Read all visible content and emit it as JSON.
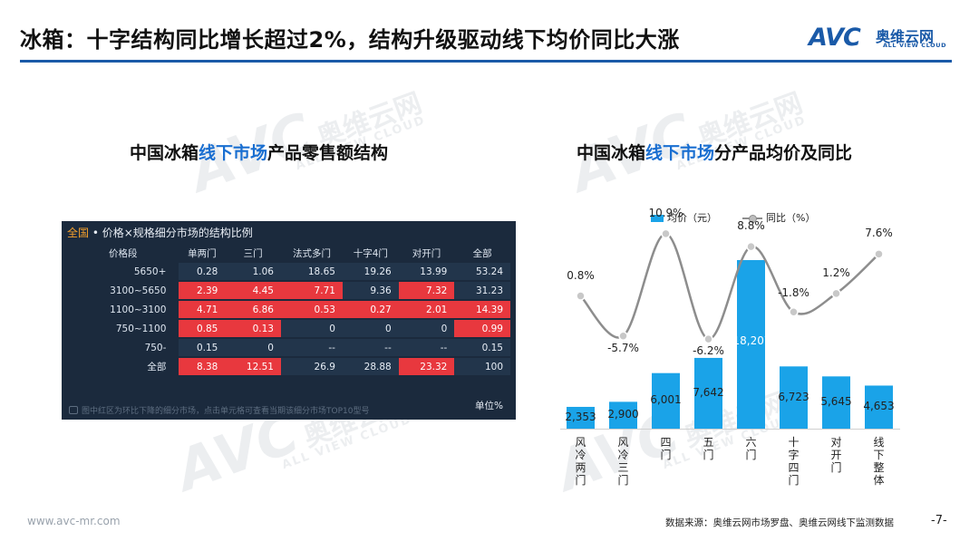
{
  "header": {
    "title": "冰箱：十字结构同比增长超过2%，结构升级驱动线下均价同比大涨",
    "logo_mark": "AVC",
    "logo_cn": "奥维云网",
    "logo_en": "ALL VIEW CLOUD"
  },
  "watermark": {
    "mark": "AVC",
    "cn": "奥维云网",
    "en": "ALL VIEW CLOUD"
  },
  "left_panel": {
    "title_pre": "中国冰箱",
    "title_hl": "线下市场",
    "title_post": "产品零售额结构",
    "dashboard": {
      "header_accent": "全国",
      "header_text": " • 价格×规格细分市场的结构比例",
      "columns": [
        "价格段",
        "单两门",
        "三门",
        "法式多门",
        "十字4门",
        "对开门",
        "全部"
      ],
      "rows": [
        {
          "label": "5650+",
          "cells": [
            "0.28",
            "1.06",
            "18.65",
            "19.26",
            "13.99",
            "53.24"
          ],
          "red": [
            false,
            false,
            false,
            false,
            false,
            false
          ]
        },
        {
          "label": "3100~5650",
          "cells": [
            "2.39",
            "4.45",
            "7.71",
            "9.36",
            "7.32",
            "31.23"
          ],
          "red": [
            true,
            true,
            true,
            false,
            true,
            false
          ]
        },
        {
          "label": "1100~3100",
          "cells": [
            "4.71",
            "6.86",
            "0.53",
            "0.27",
            "2.01",
            "14.39"
          ],
          "red": [
            true,
            true,
            true,
            true,
            true,
            true
          ]
        },
        {
          "label": "750~1100",
          "cells": [
            "0.85",
            "0.13",
            "0",
            "0",
            "0",
            "0.99"
          ],
          "red": [
            true,
            true,
            false,
            false,
            false,
            true
          ]
        },
        {
          "label": "750-",
          "cells": [
            "0.15",
            "0",
            "--",
            "--",
            "--",
            "0.15"
          ],
          "red": [
            false,
            false,
            false,
            false,
            false,
            false
          ]
        },
        {
          "label": "全部",
          "cells": [
            "8.38",
            "12.51",
            "26.9",
            "28.88",
            "23.32",
            "100"
          ],
          "red": [
            true,
            true,
            false,
            false,
            true,
            false
          ]
        }
      ],
      "footnote": "图中红区为环比下降的细分市场，点击单元格可查看当期该细分市场TOP10型号",
      "unit": "单位%"
    }
  },
  "right_panel": {
    "title_pre": "中国冰箱",
    "title_hl": "线下市场",
    "title_post": "分产品均价及同比"
  },
  "chart_data": {
    "type": "bar",
    "categories": [
      "风冷两门",
      "风冷三门",
      "四门",
      "五门",
      "六门",
      "十字四门",
      "对开门",
      "线下整体"
    ],
    "series": [
      {
        "name": "均价（元）",
        "type": "bar",
        "values": [
          2353,
          2900,
          6001,
          7642,
          18207,
          6723,
          5645,
          4653
        ],
        "labels": [
          "2,353",
          "2,900",
          "6,001",
          "7,642",
          "18,207",
          "6,723",
          "5,645",
          "4,653"
        ],
        "color": "#1aa3e8"
      },
      {
        "name": "同比（%）",
        "type": "line",
        "values": [
          0.8,
          -5.7,
          10.9,
          -6.2,
          8.8,
          -1.8,
          1.2,
          7.6
        ],
        "labels": [
          "0.8%",
          "-5.7%",
          "10.9%",
          "-6.2%",
          "8.8%",
          "-1.8%",
          "1.2%",
          "7.6%"
        ],
        "color": "#8d8d8d"
      }
    ],
    "legend_position": "top",
    "grid": false
  },
  "footer": {
    "url": "www.avc-mr.com",
    "source": "数据来源：奥维云网市场罗盘、奥维云网线下监测数据",
    "page": "-7-"
  }
}
